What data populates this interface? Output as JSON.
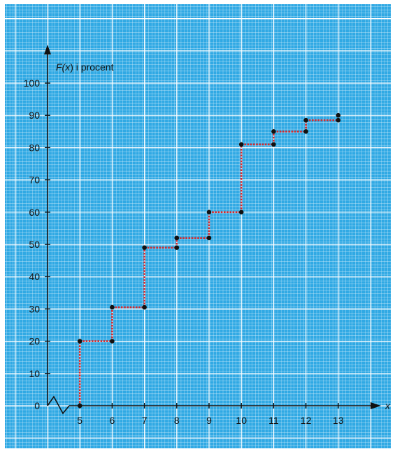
{
  "colors": {
    "grid_bg": "#30a9e4",
    "grid_fine": "#e9f6fd",
    "grid_major": "#ffffff",
    "axis": "#111111",
    "step_line": "#d8282a",
    "point": "#111111"
  },
  "chart_data": {
    "type": "line",
    "step": true,
    "ylabel": "F(x) i procent",
    "ylabel_parts": [
      "F(",
      "x",
      ") i procent"
    ],
    "xlabel": "x",
    "x_ticks": [
      "5",
      "6",
      "7",
      "8",
      "9",
      "10",
      "11",
      "12",
      "13"
    ],
    "y_ticks": [
      "0",
      "10",
      "20",
      "30",
      "40",
      "50",
      "60",
      "70",
      "80",
      "90",
      "100"
    ],
    "xlim": [
      4,
      14
    ],
    "ylim": [
      0,
      100
    ],
    "axis_break": true,
    "grid": true,
    "points": [
      {
        "x": 5,
        "y": 0
      },
      {
        "x": 5,
        "y": 20
      },
      {
        "x": 6,
        "y": 20
      },
      {
        "x": 6,
        "y": 30.5
      },
      {
        "x": 7,
        "y": 30.5
      },
      {
        "x": 7,
        "y": 49
      },
      {
        "x": 8,
        "y": 49
      },
      {
        "x": 8,
        "y": 52
      },
      {
        "x": 9,
        "y": 52
      },
      {
        "x": 9,
        "y": 60
      },
      {
        "x": 10,
        "y": 60
      },
      {
        "x": 10,
        "y": 81
      },
      {
        "x": 11,
        "y": 81
      },
      {
        "x": 11,
        "y": 85
      },
      {
        "x": 12,
        "y": 85
      },
      {
        "x": 12,
        "y": 88.5
      },
      {
        "x": 13,
        "y": 88.5
      },
      {
        "x": 13,
        "y": 90
      }
    ]
  }
}
